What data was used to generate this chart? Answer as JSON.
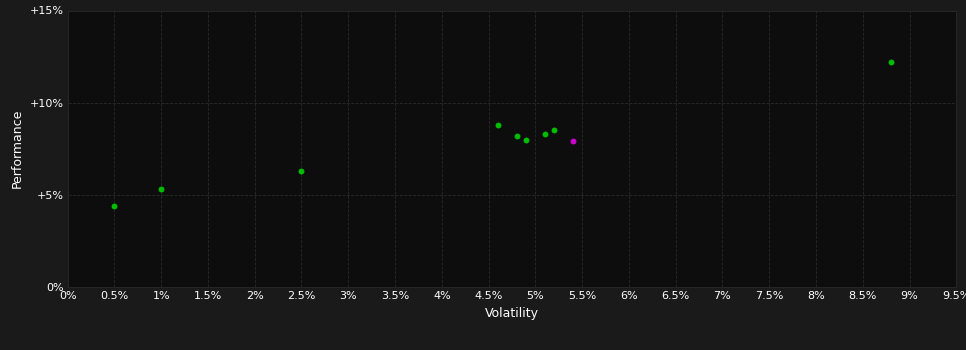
{
  "background_color": "#1a1a1a",
  "plot_bg_color": "#0d0d0d",
  "grid_color": "#2a2a2a",
  "text_color": "#ffffff",
  "xlabel": "Volatility",
  "ylabel": "Performance",
  "xlim": [
    0,
    0.095
  ],
  "ylim": [
    0,
    0.15
  ],
  "xticks": [
    0.0,
    0.005,
    0.01,
    0.015,
    0.02,
    0.025,
    0.03,
    0.035,
    0.04,
    0.045,
    0.05,
    0.055,
    0.06,
    0.065,
    0.07,
    0.075,
    0.08,
    0.085,
    0.09,
    0.095
  ],
  "yticks": [
    0.0,
    0.05,
    0.1,
    0.15
  ],
  "ytick_labels": [
    "0%",
    "+5%",
    "+10%",
    "+15%"
  ],
  "xtick_labels": [
    "0%",
    "0.5%",
    "1%",
    "1.5%",
    "2%",
    "2.5%",
    "3%",
    "3.5%",
    "4%",
    "4.5%",
    "5%",
    "5.5%",
    "6%",
    "6.5%",
    "7%",
    "7.5%",
    "8%",
    "8.5%",
    "9%",
    "9.5%"
  ],
  "green_points": [
    [
      0.005,
      0.044
    ],
    [
      0.01,
      0.053
    ],
    [
      0.025,
      0.063
    ],
    [
      0.046,
      0.088
    ],
    [
      0.048,
      0.082
    ],
    [
      0.049,
      0.08
    ],
    [
      0.051,
      0.083
    ],
    [
      0.052,
      0.085
    ],
    [
      0.088,
      0.122
    ]
  ],
  "magenta_points": [
    [
      0.054,
      0.079
    ]
  ],
  "green_color": "#00bb00",
  "magenta_color": "#cc00cc",
  "marker_size": 18,
  "font_size": 8
}
